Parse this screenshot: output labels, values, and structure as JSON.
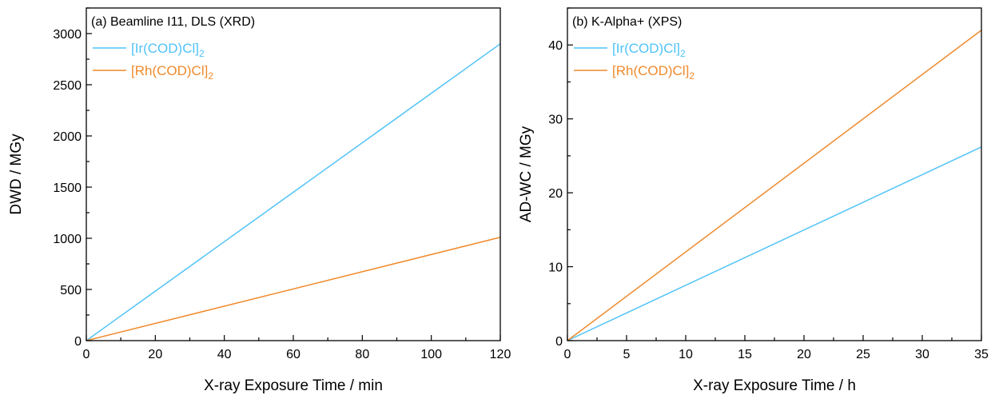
{
  "colors": {
    "ir": "#4FC3F7",
    "rh": "#F08A2C"
  },
  "chart_data": [
    {
      "type": "line",
      "title": "(a) Beamline I11, DLS (XRD)",
      "xlabel": "X-ray Exposure Time / min",
      "ylabel": "DWD / MGy",
      "xlim": [
        0,
        120
      ],
      "ylim": [
        0,
        3250
      ],
      "xticks": [
        0,
        20,
        40,
        60,
        80,
        100,
        120
      ],
      "xtick_labels": [
        "0",
        "20",
        "40",
        "60",
        "80",
        "100",
        "120"
      ],
      "xminor": [
        10,
        30,
        50,
        70,
        90,
        110
      ],
      "yticks": [
        0,
        500,
        1000,
        1500,
        2000,
        2500,
        3000
      ],
      "ytick_labels": [
        "0",
        "500",
        "1000",
        "1500",
        "2000",
        "2500",
        "3000"
      ],
      "yminor": [
        250,
        750,
        1250,
        1750,
        2250,
        2750,
        3250
      ],
      "grid": false,
      "legend_position": "top-left",
      "series": [
        {
          "name": "[Ir(COD)Cl]",
          "sub": "2",
          "color_key": "ir",
          "x": [
            0,
            120
          ],
          "y": [
            0,
            2900
          ]
        },
        {
          "name": "[Rh(COD)Cl]",
          "sub": "2",
          "color_key": "rh",
          "x": [
            0,
            120
          ],
          "y": [
            0,
            1010
          ]
        }
      ]
    },
    {
      "type": "line",
      "title": "(b) K-Alpha+ (XPS)",
      "xlabel": "X-ray Exposure Time / h",
      "ylabel": "AD-WC / MGy",
      "xlim": [
        0,
        35
      ],
      "ylim": [
        0,
        45
      ],
      "xticks": [
        0,
        5,
        10,
        15,
        20,
        25,
        30,
        35
      ],
      "xtick_labels": [
        "0",
        "5",
        "10",
        "15",
        "20",
        "25",
        "30",
        "35"
      ],
      "xminor": [
        2.5,
        7.5,
        12.5,
        17.5,
        22.5,
        27.5,
        32.5
      ],
      "yticks": [
        0,
        10,
        20,
        30,
        40
      ],
      "ytick_labels": [
        "0",
        "10",
        "20",
        "30",
        "40"
      ],
      "yminor": [
        5,
        15,
        25,
        35,
        45
      ],
      "grid": false,
      "legend_position": "top-left",
      "series": [
        {
          "name": "[Ir(COD)Cl]",
          "sub": "2",
          "color_key": "ir",
          "x": [
            0,
            35
          ],
          "y": [
            0,
            26.2
          ]
        },
        {
          "name": "[Rh(COD)Cl]",
          "sub": "2",
          "color_key": "rh",
          "x": [
            0,
            35
          ],
          "y": [
            0,
            42
          ]
        }
      ]
    }
  ]
}
